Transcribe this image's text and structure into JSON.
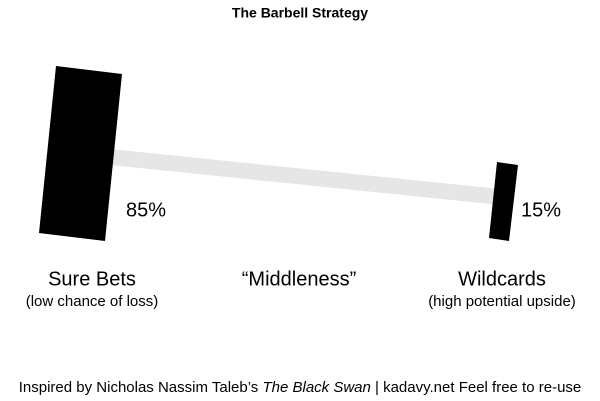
{
  "header": {
    "title": "The Barbell Strategy"
  },
  "left": {
    "percent": "85%",
    "label": "Sure Bets",
    "sublabel": "(low chance of loss)"
  },
  "middle": {
    "label": "“Middleness”"
  },
  "right": {
    "percent": "15%",
    "label": "Wildcards",
    "sublabel": "(high potential upside)"
  },
  "footer": {
    "prefix": "Inspired by Nicholas Nassim Taleb’s ",
    "book": "The Black Swan",
    "suffix": " | kadavy.net Feel free to re-use"
  }
}
